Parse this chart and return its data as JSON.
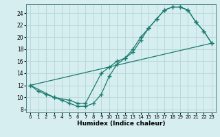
{
  "xlabel": "Humidex (Indice chaleur)",
  "bg_color": "#d6eef0",
  "grid_color": "#b8d8da",
  "line_color": "#1a7a6e",
  "marker": "+",
  "xlim": [
    -0.5,
    23.5
  ],
  "ylim": [
    7.5,
    25.5
  ],
  "xticks": [
    0,
    1,
    2,
    3,
    4,
    5,
    6,
    7,
    8,
    9,
    10,
    11,
    12,
    13,
    14,
    15,
    16,
    17,
    18,
    19,
    20,
    21,
    22,
    23
  ],
  "yticks": [
    8,
    10,
    12,
    14,
    16,
    18,
    20,
    22,
    24
  ],
  "line1_x": [
    0,
    1,
    2,
    3,
    4,
    5,
    6,
    7,
    8,
    9,
    10,
    11,
    12,
    13,
    14,
    15,
    16,
    17,
    18,
    19,
    20,
    21,
    22,
    23
  ],
  "line1_y": [
    12,
    11,
    10.5,
    10,
    9.5,
    9,
    8.5,
    8.5,
    9,
    10.5,
    13.5,
    15.5,
    16.5,
    17.5,
    19.5,
    21.5,
    23.0,
    24.5,
    25.0,
    25.0,
    24.5,
    22.5,
    21.0,
    19.0
  ],
  "line2_x": [
    0,
    3,
    5,
    6,
    7,
    9,
    10,
    11,
    12,
    13,
    14,
    15,
    16,
    17,
    18,
    19,
    20,
    21,
    22,
    23
  ],
  "line2_y": [
    12,
    10,
    9.5,
    9,
    9,
    14,
    15.0,
    16.0,
    16.5,
    18.0,
    20.0,
    21.5,
    23.0,
    24.5,
    25.0,
    25.0,
    24.5,
    22.5,
    21.0,
    19.0
  ],
  "line3_x": [
    0,
    23
  ],
  "line3_y": [
    12,
    19.0
  ]
}
